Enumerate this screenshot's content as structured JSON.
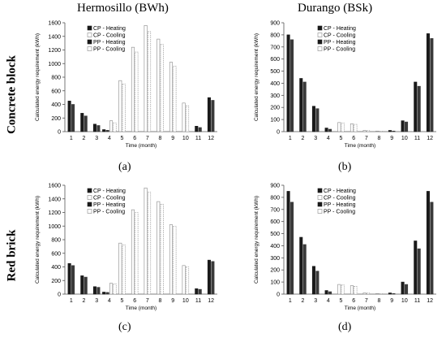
{
  "figure": {
    "col_titles": [
      "Hermosillo (BWh)",
      "Durango (BSk)"
    ],
    "row_labels": [
      "Concrete block",
      "Red brick"
    ],
    "panel_labels": [
      "(a)",
      "(b)",
      "(c)",
      "(d)"
    ]
  },
  "colors": {
    "heating": "#1a1a1a",
    "cooling_fill": "#ffffff",
    "cooling_stroke": "#888888",
    "axis": "#555555"
  },
  "chart_data": [
    {
      "type": "bar",
      "panel": "(a)",
      "ylabel": "Calculated energy requirement (kWh)",
      "xlabel": "Time (month)",
      "ylim": [
        0,
        1600
      ],
      "yticks": [
        0,
        200,
        400,
        600,
        800,
        1000,
        1200,
        1400,
        1600
      ],
      "categories": [
        "1",
        "2",
        "3",
        "4",
        "5",
        "6",
        "7",
        "8",
        "9",
        "10",
        "11",
        "12"
      ],
      "legend_position": "top-left",
      "series": [
        {
          "name": "CP - Heating",
          "kind": "heating",
          "values": [
            450,
            270,
            110,
            30,
            0,
            0,
            0,
            0,
            0,
            0,
            80,
            500
          ]
        },
        {
          "name": "CP - Cooling",
          "kind": "cooling",
          "values": [
            0,
            0,
            0,
            160,
            750,
            1240,
            1560,
            1360,
            1020,
            420,
            0,
            0
          ]
        },
        {
          "name": "PP - Heating",
          "kind": "heating",
          "values": [
            400,
            230,
            90,
            20,
            0,
            0,
            0,
            0,
            0,
            0,
            60,
            460
          ]
        },
        {
          "name": "PP - Cooling",
          "kind": "cooling",
          "values": [
            0,
            0,
            0,
            130,
            700,
            1170,
            1470,
            1280,
            960,
            380,
            0,
            0
          ]
        }
      ]
    },
    {
      "type": "bar",
      "panel": "(b)",
      "ylabel": "Calculated energy requirement (kWh)",
      "xlabel": "Time (month)",
      "ylim": [
        0,
        900
      ],
      "yticks": [
        0,
        100,
        200,
        300,
        400,
        500,
        600,
        700,
        800,
        900
      ],
      "categories": [
        "1",
        "2",
        "3",
        "4",
        "5",
        "6",
        "7",
        "8",
        "9",
        "10",
        "11",
        "12"
      ],
      "legend_position": "top-center",
      "series": [
        {
          "name": "CP - Heating",
          "kind": "heating",
          "values": [
            800,
            440,
            210,
            30,
            0,
            0,
            0,
            0,
            10,
            90,
            410,
            810
          ]
        },
        {
          "name": "CP - Cooling",
          "kind": "cooling",
          "values": [
            0,
            0,
            0,
            0,
            75,
            65,
            10,
            5,
            0,
            0,
            0,
            0
          ]
        },
        {
          "name": "PP - Heating",
          "kind": "heating",
          "values": [
            760,
            410,
            190,
            20,
            0,
            0,
            0,
            0,
            5,
            80,
            375,
            770
          ]
        },
        {
          "name": "PP - Cooling",
          "kind": "cooling",
          "values": [
            0,
            0,
            0,
            0,
            70,
            60,
            8,
            3,
            0,
            0,
            0,
            0
          ]
        }
      ]
    },
    {
      "type": "bar",
      "panel": "(c)",
      "ylabel": "Calculated energy requirement (kWh)",
      "xlabel": "Time (month)",
      "ylim": [
        0,
        1600
      ],
      "yticks": [
        0,
        200,
        400,
        600,
        800,
        1000,
        1200,
        1400,
        1600
      ],
      "categories": [
        "1",
        "2",
        "3",
        "4",
        "5",
        "6",
        "7",
        "8",
        "9",
        "10",
        "11",
        "12"
      ],
      "legend_position": "top-left",
      "series": [
        {
          "name": "CP - Heating",
          "kind": "heating",
          "values": [
            450,
            270,
            110,
            30,
            0,
            0,
            0,
            0,
            0,
            0,
            80,
            500
          ]
        },
        {
          "name": "CP - Cooling",
          "kind": "cooling",
          "values": [
            0,
            0,
            0,
            160,
            750,
            1240,
            1560,
            1360,
            1020,
            420,
            0,
            0
          ]
        },
        {
          "name": "PP - Heating",
          "kind": "heating",
          "values": [
            420,
            250,
            100,
            25,
            0,
            0,
            0,
            0,
            0,
            0,
            70,
            480
          ]
        },
        {
          "name": "PP - Cooling",
          "kind": "cooling",
          "values": [
            0,
            0,
            0,
            150,
            720,
            1200,
            1500,
            1320,
            1000,
            400,
            0,
            0
          ]
        }
      ]
    },
    {
      "type": "bar",
      "panel": "(d)",
      "ylabel": "Calculated energy requirement (kWh)",
      "xlabel": "Time (month)",
      "ylim": [
        0,
        900
      ],
      "yticks": [
        0,
        100,
        200,
        300,
        400,
        500,
        600,
        700,
        800,
        900
      ],
      "categories": [
        "1",
        "2",
        "3",
        "4",
        "5",
        "6",
        "7",
        "8",
        "9",
        "10",
        "11",
        "12"
      ],
      "legend_position": "top-center",
      "series": [
        {
          "name": "CP - Heating",
          "kind": "heating",
          "values": [
            850,
            470,
            230,
            30,
            0,
            0,
            0,
            0,
            10,
            100,
            440,
            850
          ]
        },
        {
          "name": "CP - Cooling",
          "kind": "cooling",
          "values": [
            0,
            0,
            0,
            0,
            80,
            70,
            10,
            5,
            0,
            0,
            0,
            0
          ]
        },
        {
          "name": "PP - Heating",
          "kind": "heating",
          "values": [
            760,
            410,
            190,
            20,
            0,
            0,
            0,
            0,
            5,
            80,
            375,
            760
          ]
        },
        {
          "name": "PP - Cooling",
          "kind": "cooling",
          "values": [
            0,
            0,
            0,
            0,
            75,
            65,
            8,
            3,
            0,
            0,
            0,
            0
          ]
        }
      ]
    }
  ]
}
